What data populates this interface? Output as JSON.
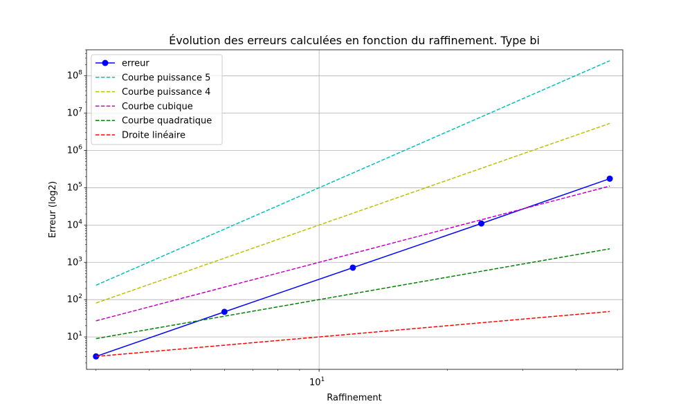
{
  "chart_data": {
    "type": "line",
    "title": "Évolution des erreurs calculées en fonction du raffinement. Type bi",
    "xlabel": "Raffinement",
    "ylabel": "Erreur (log2)",
    "xscale": "log",
    "yscale": "log",
    "xlim": [
      2.85,
      51.5
    ],
    "ylim": [
      1.35,
      500000000
    ],
    "grid": true,
    "legend_position": "top-left",
    "x_major_ticks": [
      {
        "value": 10,
        "base": "10",
        "exp": "1"
      }
    ],
    "y_major_ticks": [
      {
        "value": 10,
        "base": "10",
        "exp": "1"
      },
      {
        "value": 100,
        "base": "10",
        "exp": "2"
      },
      {
        "value": 1000,
        "base": "10",
        "exp": "3"
      },
      {
        "value": 10000,
        "base": "10",
        "exp": "4"
      },
      {
        "value": 100000,
        "base": "10",
        "exp": "5"
      },
      {
        "value": 1000000,
        "base": "10",
        "exp": "6"
      },
      {
        "value": 10000000,
        "base": "10",
        "exp": "7"
      },
      {
        "value": 100000000,
        "base": "10",
        "exp": "8"
      }
    ],
    "x": [
      3,
      6,
      12,
      24,
      48
    ],
    "series": [
      {
        "name": "erreur",
        "color": "#0000ff",
        "style": "solid",
        "marker": true,
        "values": [
          3,
          47,
          720,
          11000,
          175000
        ]
      },
      {
        "name": "Courbe puissance 5",
        "color": "#00bfbf",
        "style": "dashed",
        "marker": false,
        "values": [
          243,
          7776,
          248832,
          7962624,
          254803968
        ]
      },
      {
        "name": "Courbe puissance 4",
        "color": "#bfbf00",
        "style": "dashed",
        "marker": false,
        "values": [
          81,
          1296,
          20736,
          331776,
          5308416
        ]
      },
      {
        "name": "Courbe cubique",
        "color": "#bf00bf",
        "style": "dashed",
        "marker": false,
        "values": [
          27,
          216,
          1728,
          13824,
          110592
        ]
      },
      {
        "name": "Courbe quadratique",
        "color": "#008000",
        "style": "dashed",
        "marker": false,
        "values": [
          9,
          36,
          144,
          576,
          2304
        ]
      },
      {
        "name": "Droite linéaire",
        "color": "#ff0000",
        "style": "dashed",
        "marker": false,
        "values": [
          3,
          6,
          12,
          24,
          48
        ]
      }
    ]
  }
}
